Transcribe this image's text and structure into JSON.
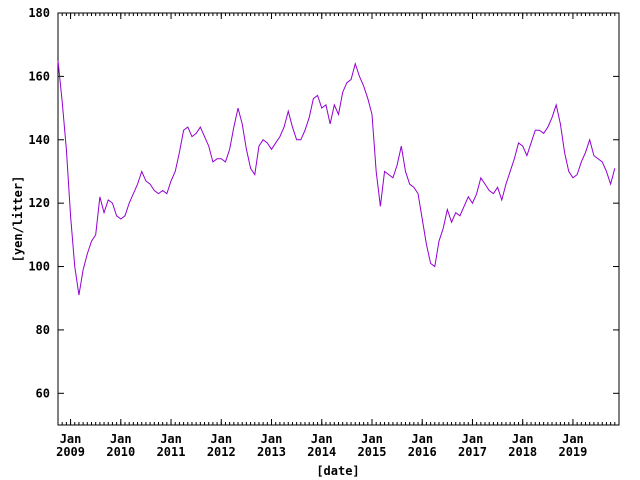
{
  "chart_data": {
    "type": "line",
    "xlabel": "[date]",
    "ylabel": "[yen/litter]",
    "ylim": [
      50,
      180
    ],
    "yticks": [
      60,
      80,
      100,
      120,
      140,
      160,
      180
    ],
    "xlim": [
      "2008-10",
      "2019-12"
    ],
    "xticks": [
      {
        "date": "2009-01",
        "label_top": "Jan",
        "label_bottom": "2009"
      },
      {
        "date": "2010-01",
        "label_top": "Jan",
        "label_bottom": "2010"
      },
      {
        "date": "2011-01",
        "label_top": "Jan",
        "label_bottom": "2011"
      },
      {
        "date": "2012-01",
        "label_top": "Jan",
        "label_bottom": "2012"
      },
      {
        "date": "2013-01",
        "label_top": "Jan",
        "label_bottom": "2013"
      },
      {
        "date": "2014-01",
        "label_top": "Jan",
        "label_bottom": "2014"
      },
      {
        "date": "2015-01",
        "label_top": "Jan",
        "label_bottom": "2015"
      },
      {
        "date": "2016-01",
        "label_top": "Jan",
        "label_bottom": "2016"
      },
      {
        "date": "2017-01",
        "label_top": "Jan",
        "label_bottom": "2017"
      },
      {
        "date": "2018-01",
        "label_top": "Jan",
        "label_bottom": "2018"
      },
      {
        "date": "2019-01",
        "label_top": "Jan",
        "label_bottom": "2019"
      }
    ],
    "grid": false,
    "line_color": "#9400d3",
    "series": [
      {
        "points": [
          [
            "2008-10",
            165
          ],
          [
            "2008-11",
            152
          ],
          [
            "2008-12",
            137
          ],
          [
            "2009-01",
            116
          ],
          [
            "2009-02",
            100
          ],
          [
            "2009-03",
            91
          ],
          [
            "2009-04",
            99
          ],
          [
            "2009-05",
            104
          ],
          [
            "2009-06",
            108
          ],
          [
            "2009-07",
            110
          ],
          [
            "2009-08",
            122
          ],
          [
            "2009-09",
            117
          ],
          [
            "2009-10",
            121
          ],
          [
            "2009-11",
            120
          ],
          [
            "2009-12",
            116
          ],
          [
            "2010-01",
            115
          ],
          [
            "2010-02",
            116
          ],
          [
            "2010-03",
            120
          ],
          [
            "2010-04",
            123
          ],
          [
            "2010-05",
            126
          ],
          [
            "2010-06",
            130
          ],
          [
            "2010-07",
            127
          ],
          [
            "2010-08",
            126
          ],
          [
            "2010-09",
            124
          ],
          [
            "2010-10",
            123
          ],
          [
            "2010-11",
            124
          ],
          [
            "2010-12",
            123
          ],
          [
            "2011-01",
            127
          ],
          [
            "2011-02",
            130
          ],
          [
            "2011-03",
            136
          ],
          [
            "2011-04",
            143
          ],
          [
            "2011-05",
            144
          ],
          [
            "2011-06",
            141
          ],
          [
            "2011-07",
            142
          ],
          [
            "2011-08",
            144
          ],
          [
            "2011-09",
            141
          ],
          [
            "2011-10",
            138
          ],
          [
            "2011-11",
            133
          ],
          [
            "2011-12",
            134
          ],
          [
            "2012-01",
            134
          ],
          [
            "2012-02",
            133
          ],
          [
            "2012-03",
            137
          ],
          [
            "2012-04",
            144
          ],
          [
            "2012-05",
            150
          ],
          [
            "2012-06",
            145
          ],
          [
            "2012-07",
            137
          ],
          [
            "2012-08",
            131
          ],
          [
            "2012-09",
            129
          ],
          [
            "2012-10",
            138
          ],
          [
            "2012-11",
            140
          ],
          [
            "2012-12",
            139
          ],
          [
            "2013-01",
            137
          ],
          [
            "2013-02",
            139
          ],
          [
            "2013-03",
            141
          ],
          [
            "2013-04",
            144
          ],
          [
            "2013-05",
            149
          ],
          [
            "2013-06",
            144
          ],
          [
            "2013-07",
            140
          ],
          [
            "2013-08",
            140
          ],
          [
            "2013-09",
            143
          ],
          [
            "2013-10",
            147
          ],
          [
            "2013-11",
            153
          ],
          [
            "2013-12",
            154
          ],
          [
            "2014-01",
            150
          ],
          [
            "2014-02",
            151
          ],
          [
            "2014-03",
            145
          ],
          [
            "2014-04",
            151
          ],
          [
            "2014-05",
            148
          ],
          [
            "2014-06",
            155
          ],
          [
            "2014-07",
            158
          ],
          [
            "2014-08",
            159
          ],
          [
            "2014-09",
            164
          ],
          [
            "2014-10",
            160
          ],
          [
            "2014-11",
            157
          ],
          [
            "2014-12",
            153
          ],
          [
            "2015-01",
            148
          ],
          [
            "2015-02",
            130
          ],
          [
            "2015-03",
            119
          ],
          [
            "2015-04",
            130
          ],
          [
            "2015-05",
            129
          ],
          [
            "2015-06",
            128
          ],
          [
            "2015-07",
            132
          ],
          [
            "2015-08",
            138
          ],
          [
            "2015-09",
            130
          ],
          [
            "2015-10",
            126
          ],
          [
            "2015-11",
            125
          ],
          [
            "2015-12",
            123
          ],
          [
            "2016-01",
            115
          ],
          [
            "2016-02",
            107
          ],
          [
            "2016-03",
            101
          ],
          [
            "2016-04",
            100
          ],
          [
            "2016-05",
            108
          ],
          [
            "2016-06",
            112
          ],
          [
            "2016-07",
            118
          ],
          [
            "2016-08",
            114
          ],
          [
            "2016-09",
            117
          ],
          [
            "2016-10",
            116
          ],
          [
            "2016-11",
            119
          ],
          [
            "2016-12",
            122
          ],
          [
            "2017-01",
            120
          ],
          [
            "2017-02",
            123
          ],
          [
            "2017-03",
            128
          ],
          [
            "2017-04",
            126
          ],
          [
            "2017-05",
            124
          ],
          [
            "2017-06",
            123
          ],
          [
            "2017-07",
            125
          ],
          [
            "2017-08",
            121
          ],
          [
            "2017-09",
            126
          ],
          [
            "2017-10",
            130
          ],
          [
            "2017-11",
            134
          ],
          [
            "2017-12",
            139
          ],
          [
            "2018-01",
            138
          ],
          [
            "2018-02",
            135
          ],
          [
            "2018-03",
            139
          ],
          [
            "2018-04",
            143
          ],
          [
            "2018-05",
            143
          ],
          [
            "2018-06",
            142
          ],
          [
            "2018-07",
            144
          ],
          [
            "2018-08",
            147
          ],
          [
            "2018-09",
            151
          ],
          [
            "2018-10",
            145
          ],
          [
            "2018-11",
            136
          ],
          [
            "2018-12",
            130
          ],
          [
            "2019-01",
            128
          ],
          [
            "2019-02",
            129
          ],
          [
            "2019-03",
            133
          ],
          [
            "2019-04",
            136
          ],
          [
            "2019-05",
            140
          ],
          [
            "2019-06",
            135
          ],
          [
            "2019-07",
            134
          ],
          [
            "2019-08",
            133
          ],
          [
            "2019-09",
            130
          ],
          [
            "2019-10",
            126
          ],
          [
            "2019-11",
            131
          ]
        ]
      }
    ]
  }
}
